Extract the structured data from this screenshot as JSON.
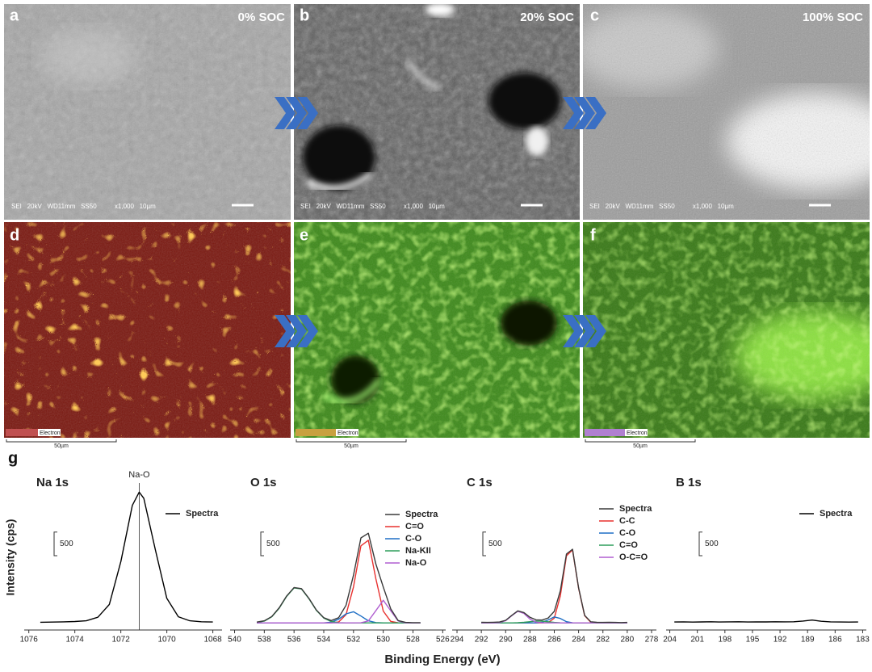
{
  "micrographs": [
    {
      "label": "a",
      "soc": "0% SOC",
      "info": "SEI   20kV   WD11mm   SS50          x1,000   10µm"
    },
    {
      "label": "b",
      "soc": "20% SOC",
      "info": "SEI   20kV   WD11mm   SS50          x1,000   10µm"
    },
    {
      "label": "c",
      "soc": "100% SOC",
      "info": "SEI   20kV   WD11mm   SS50          x1,000   10µm"
    },
    {
      "label": "d",
      "legend": "Electron",
      "scale": "50µm"
    },
    {
      "label": "e",
      "legend": "Electron",
      "scale": "50µm"
    },
    {
      "label": "f",
      "legend": "Electron",
      "scale": "50µm"
    }
  ],
  "figure": {
    "panel_label": "g",
    "ylabel": "Intensity (cps)",
    "xlabel": "Binding Energy (eV)"
  },
  "chart_data": [
    {
      "type": "line",
      "title": "Na 1s",
      "xlim": [
        1076.2,
        1067.6
      ],
      "xticks": [
        1076,
        1074,
        1072,
        1070,
        1068
      ],
      "ylim": [
        -150,
        3100
      ],
      "scale_bar": 500,
      "annotation": {
        "text": "Na-O",
        "x": 1071.2
      },
      "x": [
        1075.5,
        1075,
        1074.5,
        1074,
        1073.5,
        1073,
        1072.5,
        1072,
        1071.5,
        1071.2,
        1071,
        1070.5,
        1070,
        1069.5,
        1069,
        1068.5,
        1068
      ],
      "series": [
        {
          "name": "Spectra",
          "color": "#000000",
          "values": [
            15,
            18,
            22,
            30,
            45,
            120,
            390,
            1300,
            2490,
            2770,
            2640,
            1550,
            520,
            130,
            45,
            25,
            20
          ]
        }
      ]
    },
    {
      "type": "line",
      "title": "O 1s",
      "xlim": [
        540.3,
        525.8
      ],
      "xticks": [
        540,
        538,
        536,
        534,
        532,
        530,
        528,
        526
      ],
      "ylim": [
        -150,
        3100
      ],
      "scale_bar": 500,
      "x": [
        538.5,
        538,
        537.5,
        537,
        536.5,
        536,
        535.5,
        535,
        534.5,
        534,
        533.5,
        533,
        532.5,
        532,
        531.5,
        531,
        530.5,
        530,
        529.5,
        529,
        528.5,
        528,
        527.5
      ],
      "series": [
        {
          "name": "Spectra",
          "color": "#3a3a3a",
          "values": [
            18,
            45,
            135,
            320,
            570,
            750,
            725,
            520,
            275,
            110,
            50,
            110,
            375,
            1010,
            1800,
            1900,
            1250,
            760,
            300,
            50,
            10,
            5,
            5
          ]
        },
        {
          "name": "C=O",
          "color": "#e8312f",
          "values": [
            0,
            0,
            0,
            0,
            0,
            0,
            0,
            0,
            0,
            0,
            0,
            20,
            176,
            760,
            1632,
            1750,
            936,
            250,
            33,
            2,
            0,
            0,
            0
          ]
        },
        {
          "name": "C-O",
          "color": "#1f6fc5",
          "values": [
            0,
            0,
            0,
            0,
            0,
            0,
            0,
            0,
            0,
            0,
            16,
            78,
            192,
            237,
            146,
            45,
            7,
            0,
            0,
            0,
            0,
            0,
            0
          ]
        },
        {
          "name": "Na-KII",
          "color": "#2e9e5b",
          "values": [
            8,
            38,
            128,
            312,
            562,
            742,
            719,
            512,
            268,
            103,
            29,
            6,
            0,
            0,
            0,
            0,
            0,
            0,
            0,
            0,
            0,
            0,
            0
          ]
        },
        {
          "name": "Na-O",
          "color": "#b05fd0",
          "values": [
            0,
            0,
            0,
            0,
            0,
            0,
            0,
            0,
            0,
            0,
            0,
            0,
            0,
            0,
            2,
            41,
            259,
            480,
            259,
            41,
            2,
            0,
            0
          ]
        }
      ]
    },
    {
      "type": "line",
      "title": "C 1s",
      "xlim": [
        294.4,
        277.6
      ],
      "xticks": [
        294,
        292,
        290,
        288,
        286,
        284,
        282,
        280,
        278
      ],
      "ylim": [
        -150,
        3100
      ],
      "scale_bar": 500,
      "x": [
        292,
        291.5,
        291,
        290.5,
        290,
        289.5,
        289,
        288.5,
        288,
        287.5,
        287,
        286.5,
        286,
        285.5,
        285,
        284.5,
        284,
        283.5,
        283,
        282.5,
        282,
        281.5,
        281,
        280.5,
        280
      ],
      "series": [
        {
          "name": "Spectra",
          "color": "#3a3a3a",
          "values": [
            12,
            10,
            14,
            20,
            55,
            160,
            255,
            220,
            118,
            65,
            60,
            105,
            245,
            680,
            1460,
            1560,
            745,
            160,
            25,
            12,
            10,
            12,
            10,
            8,
            10
          ]
        },
        {
          "name": "C-C",
          "color": "#e8312f",
          "values": [
            0,
            0,
            0,
            0,
            0,
            0,
            0,
            0,
            0,
            0,
            0,
            8,
            101,
            573,
            1422,
            1545,
            734,
            153,
            14,
            0,
            0,
            0,
            0,
            0,
            0
          ]
        },
        {
          "name": "C-O",
          "color": "#1f6fc5",
          "values": [
            0,
            0,
            0,
            0,
            0,
            0,
            0,
            0,
            0,
            0,
            12,
            63,
            127,
            94,
            26,
            3,
            0,
            0,
            0,
            0,
            0,
            0,
            0,
            0,
            0
          ]
        },
        {
          "name": "C=O",
          "color": "#2e9e5b",
          "values": [
            0,
            0,
            0,
            0,
            0,
            0,
            4,
            13,
            27,
            39,
            37,
            24,
            11,
            3,
            1,
            0,
            0,
            0,
            0,
            0,
            0,
            0,
            0,
            0,
            0
          ]
        },
        {
          "name": "O-C=O",
          "color": "#b05fd0",
          "values": [
            0,
            0,
            0,
            7,
            47,
            152,
            246,
            200,
            81,
            16,
            2,
            0,
            0,
            0,
            0,
            0,
            0,
            0,
            0,
            0,
            0,
            0,
            0,
            0,
            0
          ]
        }
      ]
    },
    {
      "type": "line",
      "title": "B 1s",
      "xlim": [
        204.4,
        182.6
      ],
      "xticks": [
        204,
        201,
        198,
        195,
        192,
        189,
        186,
        183
      ],
      "ylim": [
        -150,
        3100
      ],
      "scale_bar": 500,
      "x": [
        203.5,
        202.5,
        201.5,
        200.5,
        199.5,
        198.5,
        197.5,
        196.5,
        195.5,
        194.5,
        193.5,
        192.5,
        191.5,
        190.5,
        189.5,
        188.5,
        187.5,
        186.5,
        185.5,
        184.5,
        183.5
      ],
      "series": [
        {
          "name": "Spectra",
          "color": "#000000",
          "values": [
            20,
            22,
            18,
            21,
            25,
            20,
            22,
            24,
            20,
            23,
            21,
            25,
            22,
            24,
            40,
            60,
            35,
            22,
            20,
            18,
            20
          ]
        }
      ]
    }
  ]
}
